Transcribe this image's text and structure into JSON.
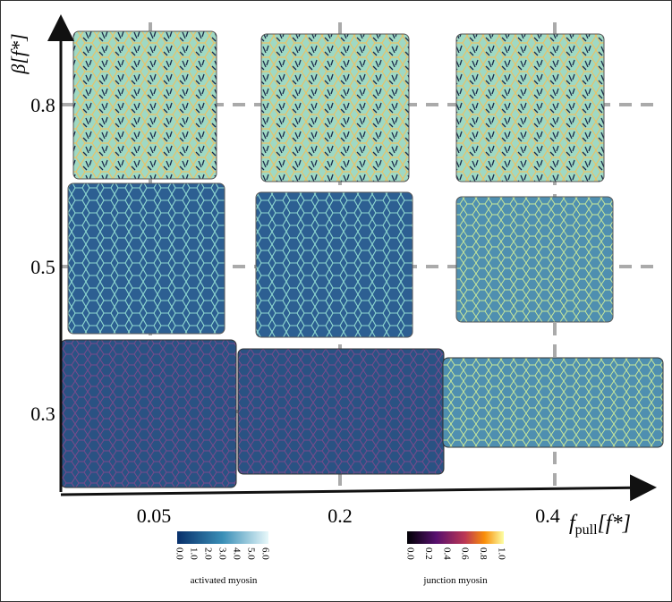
{
  "x_axis": {
    "label_main": "f",
    "label_sub": "pull",
    "label_unit": "[f*]",
    "ticks": [
      "0.05",
      "0.2",
      "0.4"
    ]
  },
  "y_axis": {
    "label": "β[f*]",
    "ticks": [
      "0.8",
      "0.5",
      "0.3"
    ]
  },
  "colorbars": [
    {
      "label": "activated myosin",
      "ticks": [
        "0.0",
        "1.0",
        "2.0",
        "3.0",
        "4.0",
        "5.0",
        "6.0"
      ]
    },
    {
      "label": "junction myosin",
      "ticks": [
        "0.0",
        "0.2",
        "0.4",
        "0.6",
        "0.8",
        "1.0"
      ]
    }
  ]
}
